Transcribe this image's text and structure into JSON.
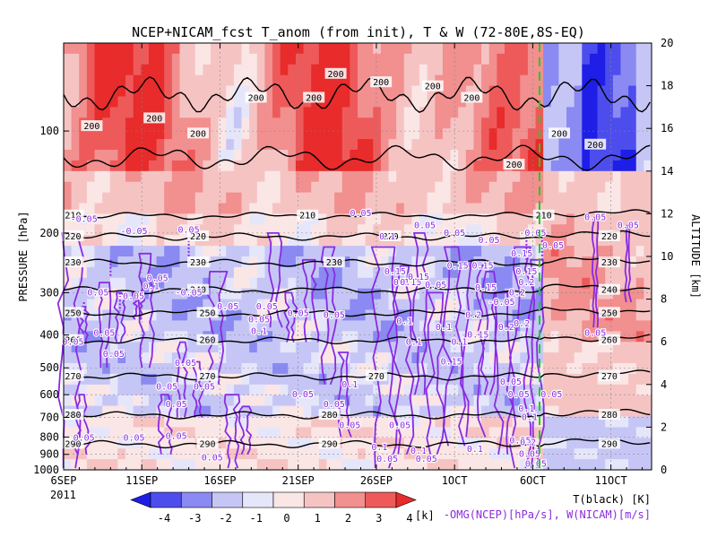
{
  "chart_data": {
    "type": "heatmap",
    "title": "NCEP+NICAM_fcst T_anom (from init), T & W  (72-80E,8S-EQ)",
    "ylabel_left": "PRESSURE [hPa]",
    "ylabel_right": "ALTITUDE [km]",
    "legend_T": "T(black) [K]",
    "legend_W": "-OMG(NCEP)[hPa/s], W(NICAM)[m/s]",
    "colorbar_unit": "[k]",
    "year_label": "2011",
    "x_ticks": [
      "6SEP",
      "11SEP",
      "16SEP",
      "21SEP",
      "26SEP",
      "1OCT",
      "6OCT",
      "11OCT"
    ],
    "y_ticks_pressure": [
      "100",
      "200",
      "300",
      "400",
      "500",
      "600",
      "700",
      "800",
      "900",
      "1000"
    ],
    "y_ticks_altitude": [
      "0",
      "2",
      "4",
      "6",
      "8",
      "10",
      "12",
      "14",
      "16",
      "18",
      "20"
    ],
    "colorbar_ticks": [
      "-4",
      "-3",
      "-2",
      "-1",
      "0",
      "1",
      "2",
      "3",
      "4"
    ],
    "colorbar_colors": [
      "#1e1ee6",
      "#4d4dee",
      "#8a8af2",
      "#c6c6f6",
      "#e6e6fb",
      "#fbe6e6",
      "#f6c3c3",
      "#f28f8f",
      "#ee5a5a",
      "#e82b2b"
    ],
    "xlim_days": [
      "6SEP",
      "13OCT"
    ],
    "ylim_hPa": [
      1000,
      55
    ],
    "forecast_start": "6OCT",
    "temperature_contours": [
      {
        "T": 200,
        "p_hPa": 120
      },
      {
        "T": 210,
        "p_hPa": 178
      },
      {
        "T": 220,
        "p_hPa": 205
      },
      {
        "T": 230,
        "p_hPa": 245
      },
      {
        "T": 240,
        "p_hPa": 295
      },
      {
        "T": 250,
        "p_hPa": 345
      },
      {
        "T": 260,
        "p_hPa": 415
      },
      {
        "T": 270,
        "p_hPa": 530
      },
      {
        "T": 280,
        "p_hPa": 690
      },
      {
        "T": 290,
        "p_hPa": 840
      }
    ],
    "T_labels_upper": [
      "200",
      "200",
      "200",
      "200",
      "200",
      "200",
      "200",
      "200",
      "200",
      "200",
      "200",
      "200"
    ],
    "W_labels": [
      "-0.05",
      "0.05",
      "0.1",
      "0.15",
      "0.2",
      "0.25"
    ]
  }
}
